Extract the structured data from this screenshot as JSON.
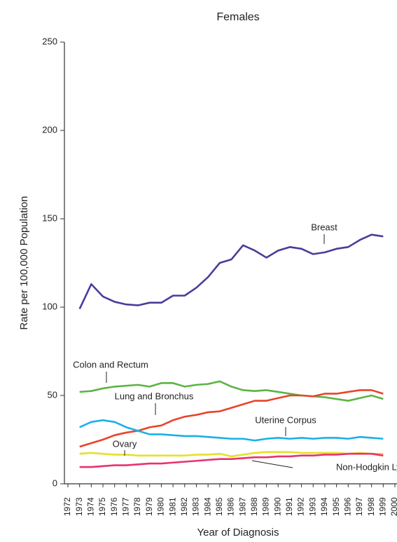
{
  "chart_data": {
    "type": "line",
    "title": "Females",
    "xlabel": "Year of Diagnosis",
    "ylabel": "Rate per 100,000 Population",
    "x": [
      1973,
      1974,
      1975,
      1976,
      1977,
      1978,
      1979,
      1980,
      1981,
      1982,
      1983,
      1984,
      1985,
      1986,
      1987,
      1988,
      1989,
      1990,
      1991,
      1992,
      1993,
      1994,
      1995,
      1996,
      1997,
      1998,
      1999
    ],
    "series": [
      {
        "name": "Breast",
        "color": "#4b3c9a",
        "values": [
          99,
          113,
          106,
          103,
          101.5,
          101,
          102.5,
          102.5,
          106.5,
          106.5,
          111,
          117,
          125,
          127,
          135,
          132,
          128,
          132,
          134,
          133,
          130,
          131,
          133,
          134,
          138,
          141,
          140
        ]
      },
      {
        "name": "Colon and Rectum",
        "color": "#5cb344",
        "values": [
          52,
          52.5,
          54,
          55,
          55.5,
          56,
          55,
          57,
          57,
          55,
          56,
          56.5,
          58,
          55,
          53,
          52.5,
          53,
          52,
          51,
          50,
          49.5,
          49,
          48,
          47,
          48.5,
          50,
          48
        ]
      },
      {
        "name": "Lung and Bronchus",
        "color": "#e8442a",
        "values": [
          21,
          23,
          25,
          27.5,
          29,
          30,
          32,
          33,
          36,
          38,
          39,
          40.5,
          41,
          43,
          45,
          47,
          47,
          48.5,
          50,
          50,
          49.5,
          51,
          51,
          52,
          53,
          53,
          51
        ]
      },
      {
        "name": "Uterine Corpus",
        "color": "#1ab0e8",
        "values": [
          32,
          35,
          36,
          35,
          32,
          30,
          28,
          28,
          27.5,
          27,
          27,
          26.5,
          26,
          25.5,
          25.5,
          24.5,
          25.5,
          26,
          25.5,
          26,
          25.5,
          26,
          26,
          25.5,
          26.5,
          26,
          25.5
        ]
      },
      {
        "name": "Ovary",
        "color": "#e6e02a",
        "values": [
          17,
          17.5,
          17,
          16.5,
          16.5,
          16,
          16,
          16,
          16,
          16,
          16.5,
          16.5,
          17,
          15.5,
          16.5,
          17.5,
          18,
          18,
          18,
          17.5,
          17.5,
          17.5,
          17.5,
          17,
          17.5,
          17,
          17
        ]
      },
      {
        "name": "Non-Hodgkin Lymphoma",
        "color": "#e8336e",
        "values": [
          9.5,
          9.5,
          10,
          10.5,
          10.5,
          11,
          11.5,
          11.5,
          12,
          12.5,
          13,
          13.5,
          14,
          14,
          14.5,
          15,
          15,
          15.5,
          15.5,
          16,
          16,
          16.5,
          16.5,
          17,
          17,
          17,
          16
        ]
      }
    ],
    "xlim": [
      1972,
      2000
    ],
    "xticks": [
      1972,
      1973,
      1974,
      1975,
      1976,
      1977,
      1978,
      1979,
      1980,
      1981,
      1982,
      1983,
      1984,
      1985,
      1986,
      1987,
      1988,
      1989,
      1990,
      1991,
      1992,
      1993,
      1994,
      1995,
      1996,
      1997,
      1998,
      1999,
      2000
    ],
    "ylim": [
      0,
      250
    ],
    "yticks": [
      0,
      50,
      100,
      150,
      200,
      250
    ],
    "grid": false
  }
}
